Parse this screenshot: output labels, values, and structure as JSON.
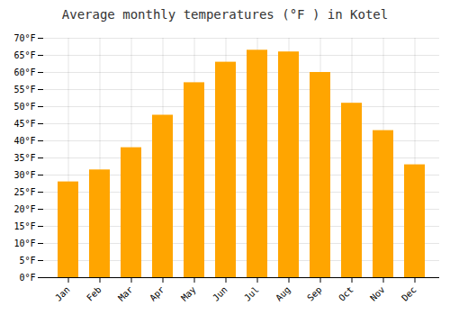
{
  "chart_data": {
    "type": "bar",
    "title": "Average monthly temperatures (°F ) in Kotel",
    "categories": [
      "Jan",
      "Feb",
      "Mar",
      "Apr",
      "May",
      "Jun",
      "Jul",
      "Aug",
      "Sep",
      "Oct",
      "Nov",
      "Dec"
    ],
    "values": [
      28,
      31.5,
      38,
      47.5,
      57,
      63,
      66.5,
      66,
      60,
      51,
      43,
      33
    ],
    "color": "#FFA500",
    "ylim": [
      0,
      70
    ],
    "yticks": [
      {
        "value": 0,
        "label": "0°F"
      },
      {
        "value": 5,
        "label": "5°F"
      },
      {
        "value": 10,
        "label": "10°F"
      },
      {
        "value": 15,
        "label": "15°F"
      },
      {
        "value": 20,
        "label": "20°F"
      },
      {
        "value": 25,
        "label": "25°F"
      },
      {
        "value": 30,
        "label": "30°F"
      },
      {
        "value": 35,
        "label": "35°F"
      },
      {
        "value": 40,
        "label": "40°F"
      },
      {
        "value": 45,
        "label": "45°F"
      },
      {
        "value": 50,
        "label": "50°F"
      },
      {
        "value": 55,
        "label": "55°F"
      },
      {
        "value": 60,
        "label": "60°F"
      },
      {
        "value": 65,
        "label": "65°F"
      },
      {
        "value": 70,
        "label": "70°F"
      }
    ],
    "grid": true
  }
}
